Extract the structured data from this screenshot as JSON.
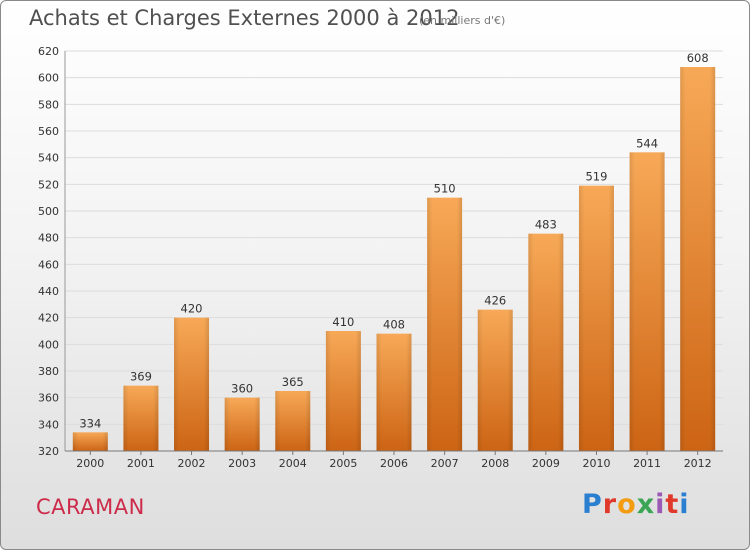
{
  "header": {
    "title": "Achats et Charges Externes 2000 à 2012",
    "subtitle": "(en milliers d'€)"
  },
  "footer": {
    "commune": "CARAMAN",
    "logo_text": "Proxiti",
    "logo_colors": [
      "#2a7fd0",
      "#e0392b",
      "#f39c12",
      "#3aa655",
      "#9b59b6",
      "#e0392b",
      "#2a7fd0"
    ]
  },
  "chart_data": {
    "type": "bar",
    "title": "Achats et Charges Externes 2000 à 2012",
    "subtitle": "(en milliers d'€)",
    "xlabel": "",
    "ylabel": "",
    "categories": [
      "2000",
      "2001",
      "2002",
      "2003",
      "2004",
      "2005",
      "2006",
      "2007",
      "2008",
      "2009",
      "2010",
      "2011",
      "2012"
    ],
    "values": [
      334,
      369,
      420,
      360,
      365,
      410,
      408,
      510,
      426,
      483,
      519,
      544,
      608
    ],
    "data_labels": [
      "334",
      "369",
      "420",
      "360",
      "365",
      "410",
      "408",
      "510",
      "426",
      "483",
      "519",
      "544",
      "608"
    ],
    "ylim": [
      320,
      620
    ],
    "yticks": [
      320,
      340,
      360,
      380,
      400,
      420,
      440,
      460,
      480,
      500,
      520,
      540,
      560,
      580,
      600,
      620
    ],
    "ytick_labels": [
      "320",
      "340",
      "360",
      "380",
      "400",
      "420",
      "440",
      "460",
      "480",
      "500",
      "520",
      "540",
      "560",
      "580",
      "600",
      "620"
    ],
    "grid": true,
    "colors": {
      "bar_light": "#f7a957",
      "bar_dark": "#cc6414",
      "grid": "#dcdcdc"
    }
  }
}
